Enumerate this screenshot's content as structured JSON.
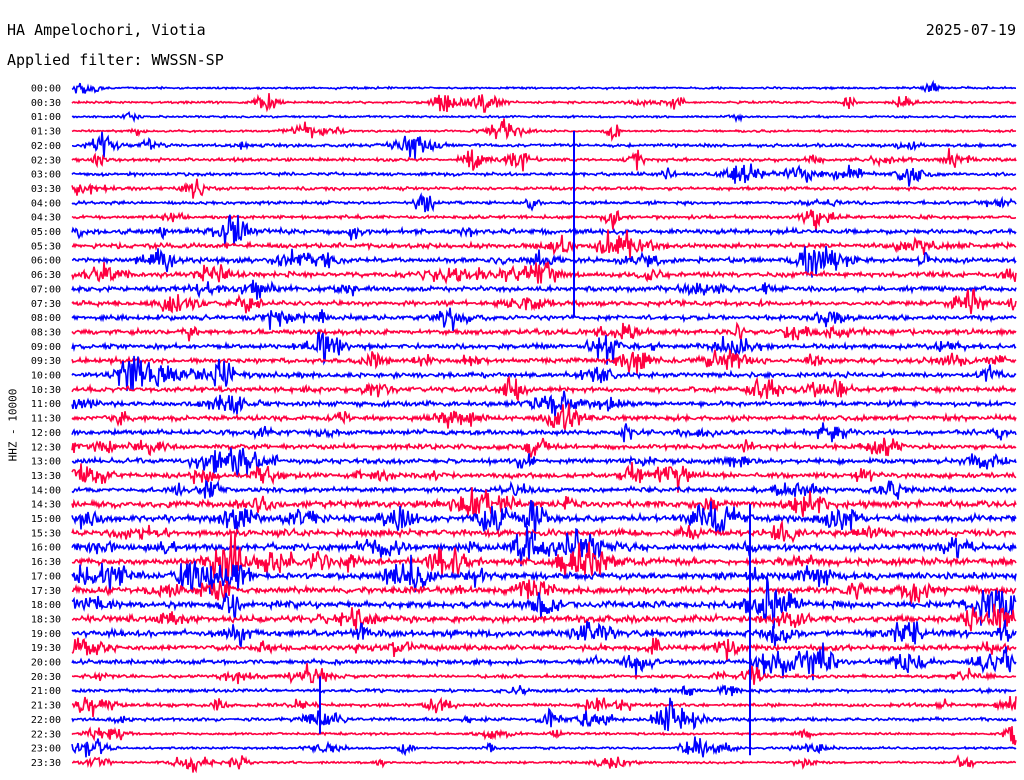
{
  "header": {
    "station": "HA Ampelochori, Viotia",
    "date": "2025-07-19",
    "filter": "Applied filter: WWSSN-SP"
  },
  "chart_data": {
    "type": "line",
    "ylabel": "HHZ - 10000",
    "tick_labels": [
      "00:00",
      "00:30",
      "01:00",
      "01:30",
      "02:00",
      "02:30",
      "03:00",
      "03:30",
      "04:00",
      "04:30",
      "05:00",
      "05:30",
      "06:00",
      "06:30",
      "07:00",
      "07:30",
      "08:00",
      "08:30",
      "09:00",
      "09:30",
      "10:00",
      "10:30",
      "11:00",
      "11:30",
      "12:00",
      "12:30",
      "13:00",
      "13:30",
      "14:00",
      "14:30",
      "15:00",
      "15:30",
      "16:00",
      "16:30",
      "17:00",
      "17:30",
      "18:00",
      "18:30",
      "19:00",
      "19:30",
      "20:00",
      "20:30",
      "21:00",
      "21:30",
      "22:00",
      "22:30",
      "23:00",
      "23:30"
    ],
    "colors": [
      "#0000ff",
      "#ff0040"
    ],
    "background": "#ffffff",
    "trace_count": 48,
    "minutes_per_trace": 30
  }
}
